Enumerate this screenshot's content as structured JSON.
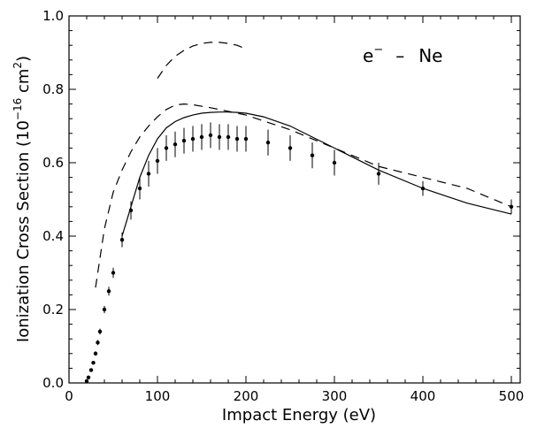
{
  "chart_data": {
    "type": "line",
    "title": "",
    "xlabel": "Impact Energy (eV)",
    "ylabel_main": "Ionization Cross Section (10",
    "ylabel_sup_exp": "−16",
    "ylabel_unit": " cm",
    "ylabel_sup_sq": "2",
    "ylabel_close": ")",
    "annotation": {
      "e": "e",
      "sup": "−",
      "dash": "–",
      "ne": "Ne"
    },
    "xlim": [
      0,
      510
    ],
    "ylim": [
      0,
      1.0
    ],
    "xticks": [
      0,
      100,
      200,
      300,
      400,
      500
    ],
    "xtick_labels": [
      "0",
      "100",
      "200",
      "300",
      "400",
      "500"
    ],
    "yticks": [
      0.0,
      0.2,
      0.4,
      0.6,
      0.8,
      1.0
    ],
    "ytick_labels": [
      "0.0",
      "0.2",
      "0.4",
      "0.6",
      "0.8",
      "1.0"
    ],
    "series": [
      {
        "name": "theory-solid",
        "style": "solid",
        "x": [
          60,
          70,
          80,
          90,
          100,
          110,
          120,
          130,
          140,
          150,
          160,
          170,
          180,
          190,
          200,
          220,
          250,
          300,
          350,
          400,
          450,
          500
        ],
        "y": [
          0.4,
          0.48,
          0.56,
          0.62,
          0.665,
          0.695,
          0.712,
          0.723,
          0.73,
          0.735,
          0.737,
          0.738,
          0.738,
          0.737,
          0.735,
          0.725,
          0.7,
          0.64,
          0.58,
          0.53,
          0.49,
          0.46
        ]
      },
      {
        "name": "theory-dashed-lower",
        "style": "dashed",
        "x": [
          30,
          35,
          40,
          50,
          60,
          70,
          80,
          90,
          100,
          110,
          120,
          130,
          140,
          160,
          180,
          200,
          250,
          300,
          350,
          400,
          450,
          500
        ],
        "y": [
          0.26,
          0.34,
          0.42,
          0.52,
          0.58,
          0.63,
          0.67,
          0.7,
          0.725,
          0.745,
          0.757,
          0.76,
          0.758,
          0.75,
          0.74,
          0.73,
          0.69,
          0.64,
          0.59,
          0.56,
          0.53,
          0.48
        ]
      },
      {
        "name": "theory-dashed-upper",
        "style": "dashed",
        "x": [
          100,
          110,
          120,
          130,
          140,
          150,
          160,
          170,
          180,
          190,
          200
        ],
        "y": [
          0.83,
          0.865,
          0.89,
          0.906,
          0.918,
          0.925,
          0.928,
          0.928,
          0.925,
          0.92,
          0.91
        ]
      },
      {
        "name": "experiment",
        "style": "points",
        "x": [
          20,
          22,
          25,
          27.5,
          30,
          32.5,
          35,
          40,
          45,
          50,
          60,
          70,
          80,
          90,
          100,
          110,
          120,
          130,
          140,
          150,
          160,
          170,
          180,
          190,
          200,
          225,
          250,
          275,
          300,
          350,
          400,
          500
        ],
        "y": [
          0.005,
          0.015,
          0.035,
          0.055,
          0.08,
          0.11,
          0.14,
          0.2,
          0.25,
          0.3,
          0.39,
          0.47,
          0.53,
          0.57,
          0.605,
          0.64,
          0.65,
          0.66,
          0.665,
          0.67,
          0.675,
          0.67,
          0.67,
          0.665,
          0.665,
          0.655,
          0.64,
          0.62,
          0.6,
          0.57,
          0.53,
          0.48
        ],
        "err": [
          0.002,
          0.003,
          0.004,
          0.005,
          0.006,
          0.007,
          0.008,
          0.01,
          0.012,
          0.014,
          0.02,
          0.025,
          0.03,
          0.035,
          0.035,
          0.035,
          0.035,
          0.035,
          0.035,
          0.035,
          0.035,
          0.035,
          0.035,
          0.035,
          0.035,
          0.035,
          0.035,
          0.035,
          0.035,
          0.03,
          0.02,
          0.02
        ]
      }
    ]
  }
}
